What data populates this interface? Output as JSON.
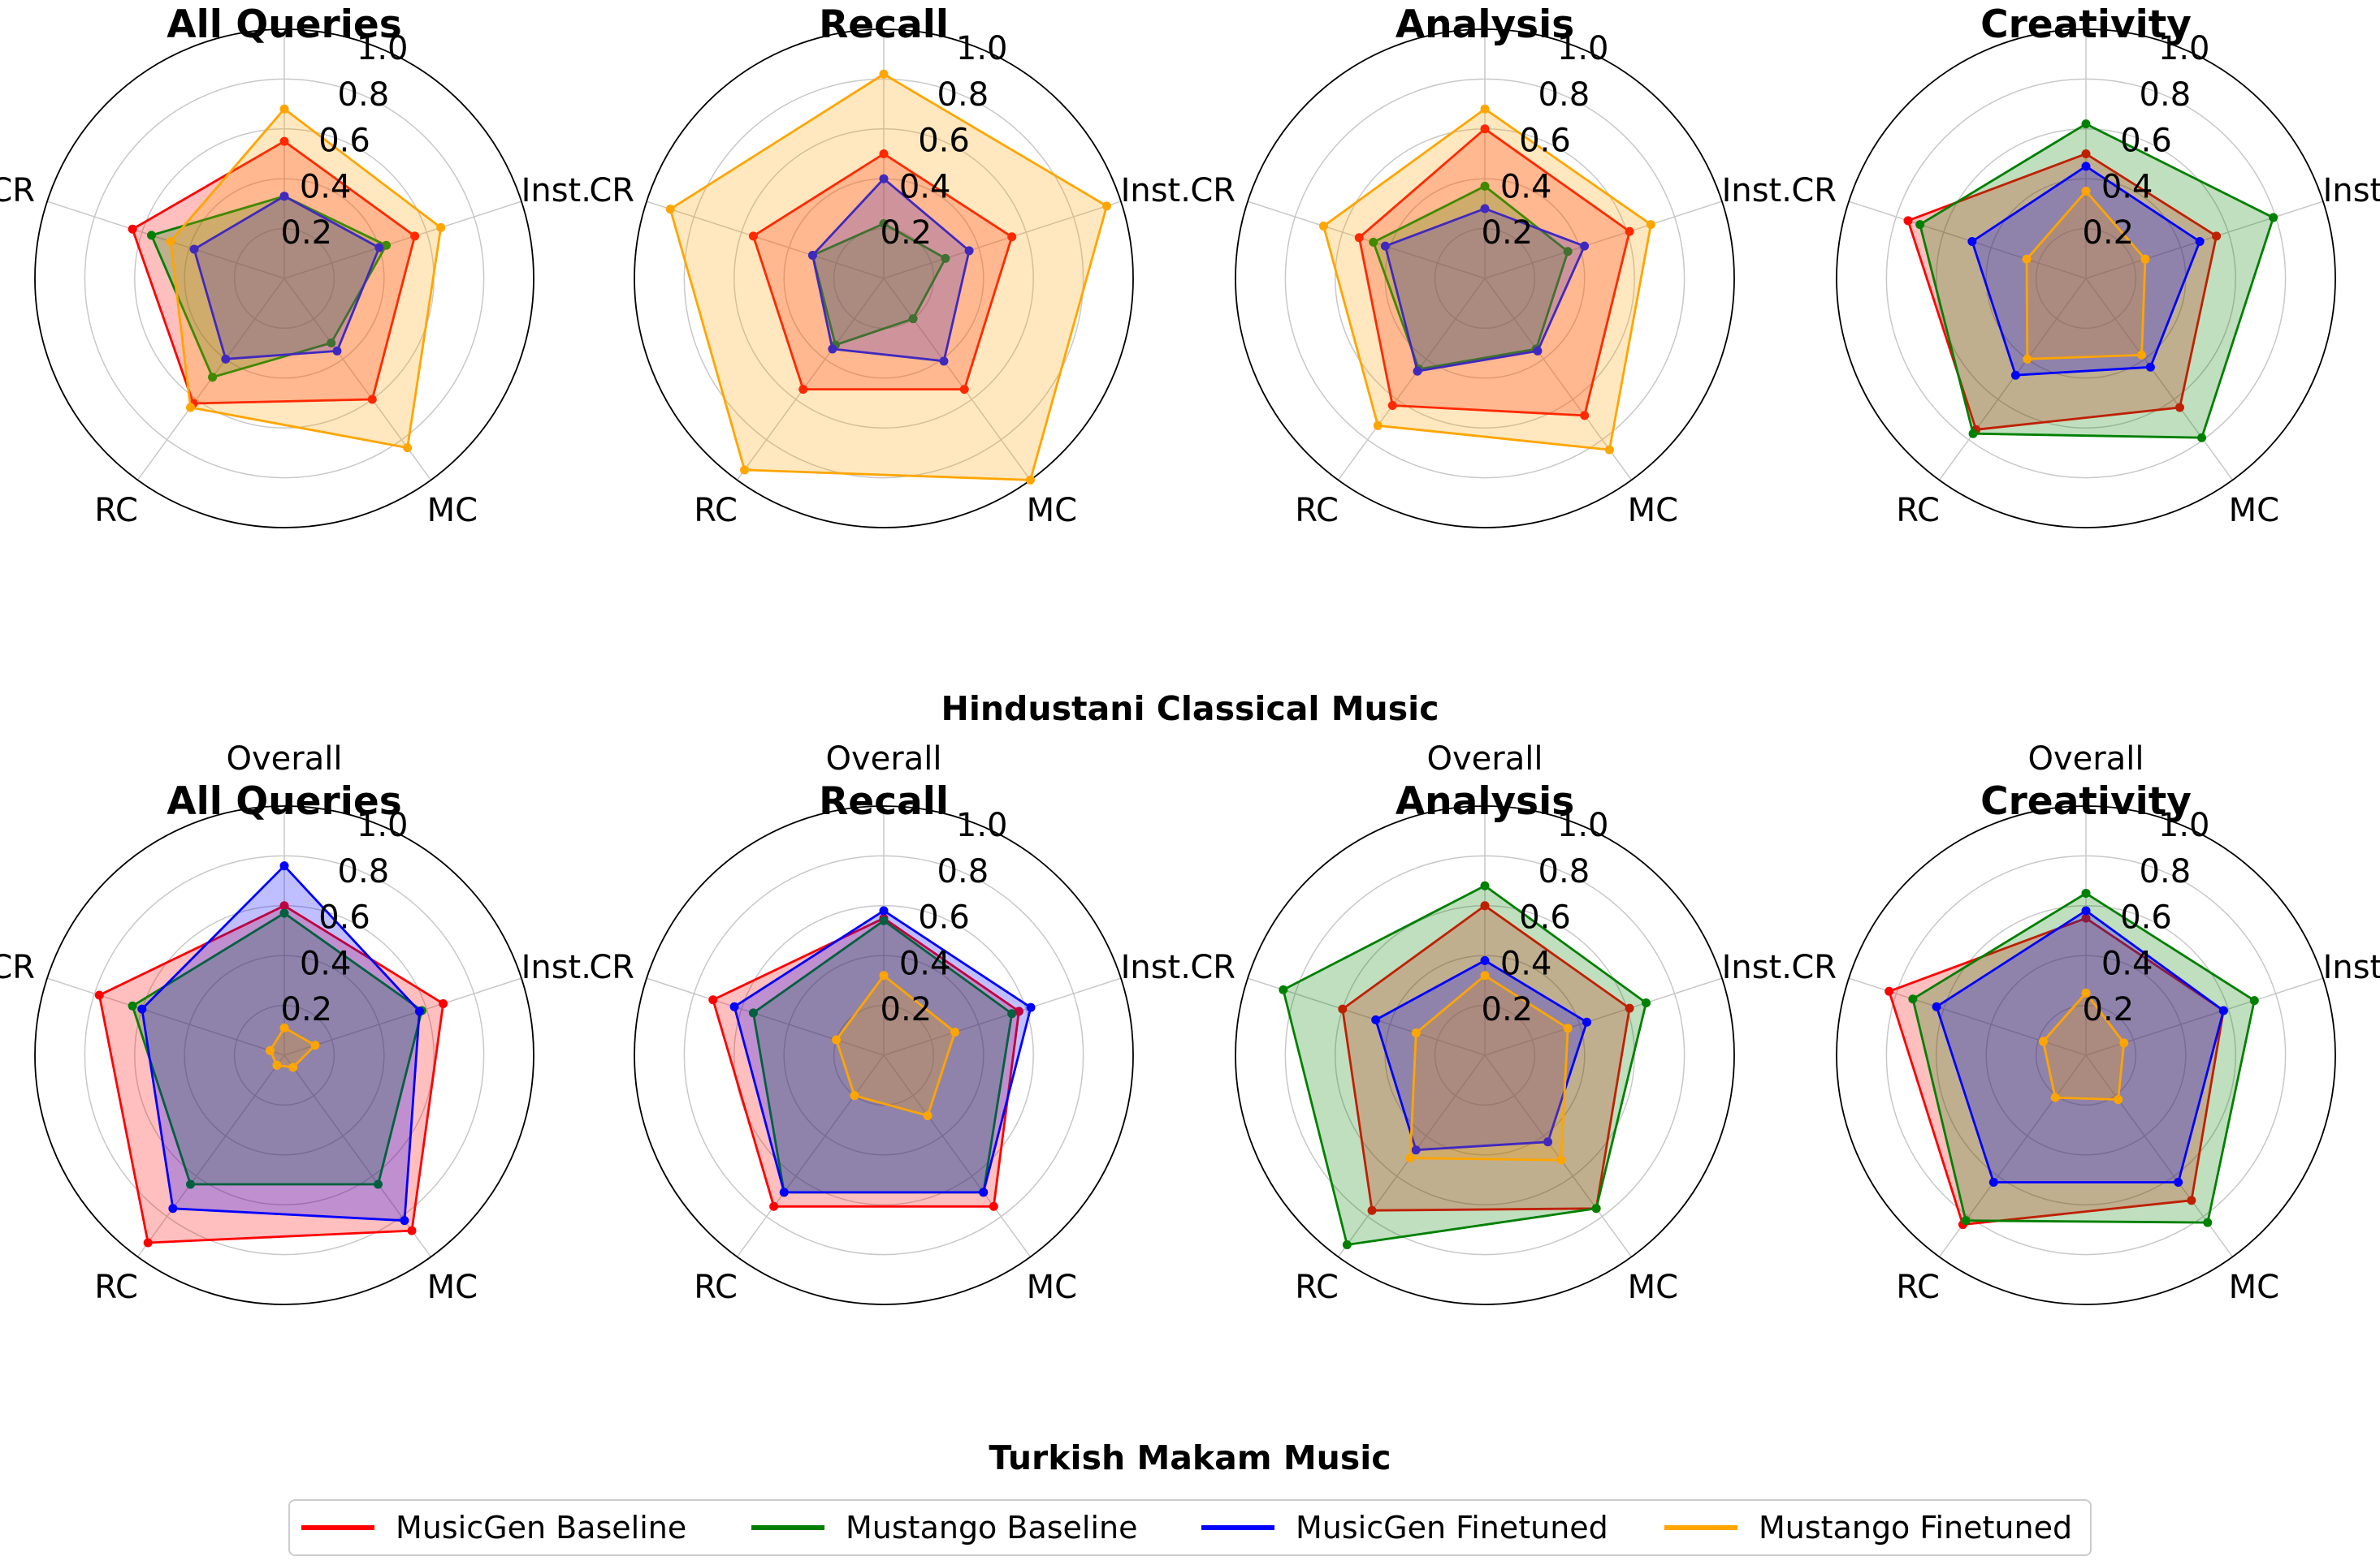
{
  "axes": [
    "Overall",
    "Inst.",
    "MC",
    "RC",
    "CR"
  ],
  "tick_labels": [
    "0.2",
    "0.4",
    "0.6",
    "0.8",
    "1.0"
  ],
  "colors": {
    "MusicGen Baseline": "#ff0000",
    "Mustango Baseline": "#008000",
    "MusicGen Finetuned": "#0000ff",
    "Mustango Finetuned": "#ffa500"
  },
  "sections": [
    {
      "title": "Hindustani Classical Music"
    },
    {
      "title": "Turkish Makam Music"
    }
  ],
  "legend": [
    {
      "label": "MusicGen Baseline",
      "color": "#ff0000"
    },
    {
      "label": "Mustango Baseline",
      "color": "#008000"
    },
    {
      "label": "MusicGen Finetuned",
      "color": "#0000ff"
    },
    {
      "label": "Mustango Finetuned",
      "color": "#ffa500"
    }
  ],
  "chart_data": [
    {
      "type": "radar",
      "title": "All Queries",
      "group": "Hindustani Classical Music",
      "ylim": [
        0,
        1.0
      ],
      "categories": [
        "Overall",
        "Inst.",
        "MC",
        "RC",
        "CR"
      ],
      "series": [
        {
          "name": "MusicGen Baseline",
          "values": [
            0.55,
            0.55,
            0.6,
            0.62,
            0.64
          ]
        },
        {
          "name": "Mustango Baseline",
          "values": [
            0.33,
            0.43,
            0.32,
            0.49,
            0.56
          ]
        },
        {
          "name": "MusicGen Finetuned",
          "values": [
            0.33,
            0.4,
            0.36,
            0.4,
            0.38
          ]
        },
        {
          "name": "Mustango Finetuned",
          "values": [
            0.68,
            0.66,
            0.84,
            0.64,
            0.48
          ]
        }
      ]
    },
    {
      "type": "radar",
      "title": "Recall",
      "group": "Hindustani Classical Music",
      "ylim": [
        0,
        1.0
      ],
      "categories": [
        "Overall",
        "Inst.",
        "MC",
        "RC",
        "CR"
      ],
      "series": [
        {
          "name": "MusicGen Baseline",
          "values": [
            0.5,
            0.54,
            0.55,
            0.55,
            0.55
          ]
        },
        {
          "name": "Mustango Baseline",
          "values": [
            0.22,
            0.26,
            0.2,
            0.33,
            0.3
          ]
        },
        {
          "name": "MusicGen Finetuned",
          "values": [
            0.4,
            0.36,
            0.41,
            0.35,
            0.3
          ]
        },
        {
          "name": "Mustango Finetuned",
          "values": [
            0.82,
            0.94,
            1.0,
            0.95,
            0.9
          ]
        }
      ]
    },
    {
      "type": "radar",
      "title": "Analysis",
      "group": "Hindustani Classical Music",
      "ylim": [
        0,
        1.0
      ],
      "categories": [
        "Overall",
        "Inst.",
        "MC",
        "RC",
        "CR"
      ],
      "series": [
        {
          "name": "MusicGen Baseline",
          "values": [
            0.6,
            0.61,
            0.68,
            0.63,
            0.53
          ]
        },
        {
          "name": "Mustango Baseline",
          "values": [
            0.37,
            0.35,
            0.35,
            0.45,
            0.47
          ]
        },
        {
          "name": "MusicGen Finetuned",
          "values": [
            0.28,
            0.42,
            0.36,
            0.46,
            0.42
          ]
        },
        {
          "name": "Mustango Finetuned",
          "values": [
            0.68,
            0.7,
            0.85,
            0.73,
            0.68
          ]
        }
      ]
    },
    {
      "type": "radar",
      "title": "Creativity",
      "group": "Hindustani Classical Music",
      "ylim": [
        0,
        1.0
      ],
      "categories": [
        "Overall",
        "Inst.",
        "MC",
        "RC",
        "CR"
      ],
      "series": [
        {
          "name": "MusicGen Baseline",
          "values": [
            0.5,
            0.55,
            0.64,
            0.75,
            0.75
          ]
        },
        {
          "name": "Mustango Baseline",
          "values": [
            0.62,
            0.79,
            0.79,
            0.77,
            0.7
          ]
        },
        {
          "name": "MusicGen Finetuned",
          "values": [
            0.45,
            0.48,
            0.44,
            0.48,
            0.48
          ]
        },
        {
          "name": "Mustango Finetuned",
          "values": [
            0.35,
            0.25,
            0.38,
            0.4,
            0.25
          ]
        }
      ]
    },
    {
      "type": "radar",
      "title": "All Queries",
      "group": "Turkish Makam Music",
      "ylim": [
        0,
        1.0
      ],
      "categories": [
        "Overall",
        "Inst.",
        "MC",
        "RC",
        "CR"
      ],
      "series": [
        {
          "name": "MusicGen Baseline",
          "values": [
            0.6,
            0.67,
            0.87,
            0.93,
            0.78
          ]
        },
        {
          "name": "Mustango Baseline",
          "values": [
            0.57,
            0.58,
            0.64,
            0.64,
            0.64
          ]
        },
        {
          "name": "MusicGen Finetuned",
          "values": [
            0.76,
            0.57,
            0.82,
            0.76,
            0.6
          ]
        },
        {
          "name": "Mustango Finetuned",
          "values": [
            0.11,
            0.13,
            0.06,
            0.05,
            0.06
          ]
        }
      ]
    },
    {
      "type": "radar",
      "title": "Recall",
      "group": "Turkish Makam Music",
      "ylim": [
        0,
        1.0
      ],
      "categories": [
        "Overall",
        "Inst.",
        "MC",
        "RC",
        "CR"
      ],
      "series": [
        {
          "name": "MusicGen Baseline",
          "values": [
            0.55,
            0.57,
            0.75,
            0.75,
            0.72
          ]
        },
        {
          "name": "Mustango Baseline",
          "values": [
            0.54,
            0.54,
            0.68,
            0.68,
            0.55
          ]
        },
        {
          "name": "MusicGen Finetuned",
          "values": [
            0.58,
            0.62,
            0.68,
            0.68,
            0.63
          ]
        },
        {
          "name": "Mustango Finetuned",
          "values": [
            0.32,
            0.3,
            0.3,
            0.2,
            0.2
          ]
        }
      ]
    },
    {
      "type": "radar",
      "title": "Analysis",
      "group": "Turkish Makam Music",
      "ylim": [
        0,
        1.0
      ],
      "categories": [
        "Overall",
        "Inst.",
        "MC",
        "RC",
        "CR"
      ],
      "series": [
        {
          "name": "MusicGen Baseline",
          "values": [
            0.6,
            0.61,
            0.76,
            0.77,
            0.6
          ]
        },
        {
          "name": "Mustango Baseline",
          "values": [
            0.68,
            0.68,
            0.76,
            0.94,
            0.85
          ]
        },
        {
          "name": "MusicGen Finetuned",
          "values": [
            0.38,
            0.43,
            0.43,
            0.47,
            0.46
          ]
        },
        {
          "name": "Mustango Finetuned",
          "values": [
            0.32,
            0.35,
            0.52,
            0.51,
            0.29
          ]
        }
      ]
    },
    {
      "type": "radar",
      "title": "Creativity",
      "group": "Turkish Makam Music",
      "ylim": [
        0,
        1.0
      ],
      "categories": [
        "Overall",
        "Inst.",
        "MC",
        "RC",
        "CR"
      ],
      "series": [
        {
          "name": "MusicGen Baseline",
          "values": [
            0.55,
            0.58,
            0.72,
            0.84,
            0.83
          ]
        },
        {
          "name": "Mustango Baseline",
          "values": [
            0.65,
            0.71,
            0.83,
            0.82,
            0.73
          ]
        },
        {
          "name": "MusicGen Finetuned",
          "values": [
            0.58,
            0.58,
            0.63,
            0.63,
            0.63
          ]
        },
        {
          "name": "Mustango Finetuned",
          "values": [
            0.25,
            0.16,
            0.22,
            0.21,
            0.18
          ]
        }
      ]
    }
  ]
}
